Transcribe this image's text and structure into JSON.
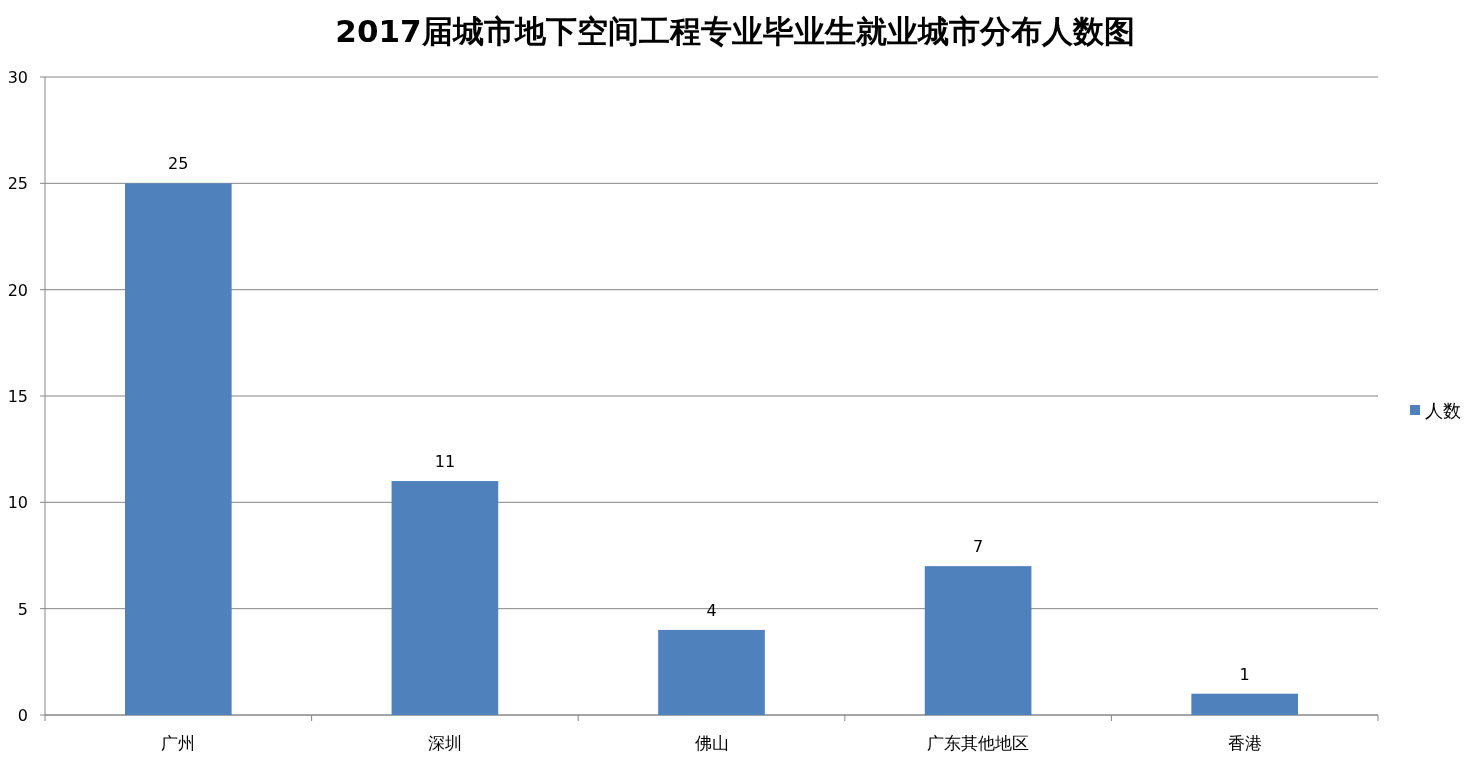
{
  "chart_data": {
    "type": "bar",
    "title": "2017届城市地下空间工程专业毕业生就业城市分布人数图",
    "categories": [
      "广州",
      "深圳",
      "佛山",
      "广东其他地区",
      "香港"
    ],
    "series": [
      {
        "name": "人数",
        "color": "#4f81bd",
        "values": [
          25,
          11,
          4,
          7,
          1
        ]
      }
    ],
    "ylim": [
      0,
      30
    ],
    "yticks": [
      0,
      5,
      10,
      15,
      20,
      25,
      30
    ],
    "grid": "y",
    "legend": "right",
    "data_labels": true
  }
}
